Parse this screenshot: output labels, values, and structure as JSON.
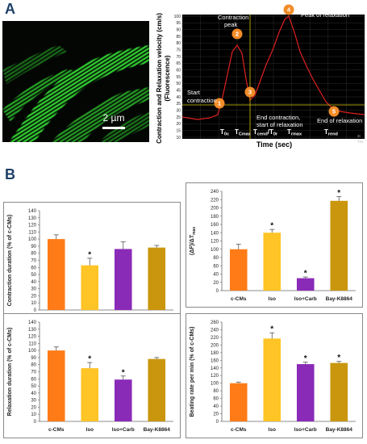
{
  "panel_labels": {
    "a": "A",
    "b": "B"
  },
  "micrograph": {
    "scale_bar_label": "2 µm"
  },
  "trace": {
    "ylabel_line1": "Contraction and Relaxation velocity (cm/s)",
    "ylabel_line2": "(Fluorescence)",
    "xlabel": "Time (sec)",
    "y_ticks": [
      "100",
      "95",
      "90",
      "85",
      "80",
      "75",
      "70",
      "65",
      "60",
      "55",
      "50",
      "45",
      "40",
      "35",
      "30",
      "25",
      "20",
      "15",
      "10"
    ],
    "x_start_label": "0.897196",
    "x_end_label": "2r",
    "x_end_label2": "Tim",
    "time_markers": {
      "t0c": "T",
      "t0c_sub": "0c",
      "tcmax": "T",
      "tcmax_sub": "Cmax",
      "tcend": "T",
      "tcend_sub": "cend",
      "slash": "/T",
      "t0r_sub": "0r",
      "trmax": "T",
      "trmax_sub": "rmax",
      "trend": "T",
      "trend_sub": "rend"
    },
    "annotations": [
      {
        "num": "1",
        "label": "Start\ncontraction"
      },
      {
        "num": "2",
        "label": "Contraction\npeak"
      },
      {
        "num": "3",
        "label": "End contraction,\nstart of relaxation"
      },
      {
        "num": "4",
        "label": "Peak of relaxation"
      },
      {
        "num": "5",
        "label": "End of relaxation"
      }
    ],
    "marker_color": "#f28c28",
    "line_color": "#e02020",
    "guide_color": "#d4c400"
  },
  "chart_data": [
    {
      "type": "bar",
      "categories": [
        "c-CMs",
        "Iso",
        "Iso+Carb",
        "Bay-K8864"
      ],
      "values": [
        100,
        63,
        86,
        88
      ],
      "errors": [
        6,
        10,
        10,
        3
      ],
      "significant": [
        false,
        true,
        false,
        false
      ],
      "ylabel": "Contraction duration (% of c-CMs)",
      "ylim": [
        0,
        140
      ],
      "yticks": [
        0,
        10,
        20,
        30,
        40,
        50,
        60,
        70,
        80,
        90,
        100,
        110,
        120,
        130,
        140
      ],
      "colors": [
        "#ff7b17",
        "#ffc425",
        "#8a2bb8",
        "#c9960e"
      ]
    },
    {
      "type": "bar",
      "categories": [
        "c-CMs",
        "Iso",
        "Iso+Carb",
        "Bay-K8864"
      ],
      "values": [
        100,
        140,
        30,
        217
      ],
      "errors": [
        12,
        8,
        3,
        10
      ],
      "significant": [
        false,
        true,
        true,
        true
      ],
      "ylabel": "(ΔF)/ΔT",
      "ylabel_sub": "max",
      "ylim": [
        0,
        240
      ],
      "yticks": [
        0,
        20,
        40,
        60,
        80,
        100,
        120,
        140,
        160,
        180,
        200,
        220,
        240
      ],
      "colors": [
        "#ff7b17",
        "#ffc425",
        "#8a2bb8",
        "#c9960e"
      ]
    },
    {
      "type": "bar",
      "categories": [
        "c-CMs",
        "Iso",
        "Iso+Carb",
        "Bay-K8864"
      ],
      "values": [
        100,
        75,
        59,
        88
      ],
      "errors": [
        5,
        8,
        5,
        2
      ],
      "significant": [
        false,
        true,
        true,
        false
      ],
      "ylabel": "Relaxation duration (% of c-CMs)",
      "ylim": [
        0,
        140
      ],
      "yticks": [
        0,
        10,
        20,
        30,
        40,
        50,
        60,
        70,
        80,
        90,
        100,
        110,
        120,
        130,
        140
      ],
      "colors": [
        "#ff7b17",
        "#ffc425",
        "#8a2bb8",
        "#c9960e"
      ]
    },
    {
      "type": "bar",
      "categories": [
        "c-CMs",
        "Iso",
        "Iso+Carb",
        "Bay-K8864"
      ],
      "values": [
        100,
        217,
        150,
        153
      ],
      "errors": [
        3,
        15,
        5,
        4
      ],
      "significant": [
        false,
        true,
        true,
        true
      ],
      "ylabel": "Beating rate per min (% of c-CMs)",
      "ylim": [
        0,
        260
      ],
      "yticks": [
        0,
        20,
        40,
        60,
        80,
        100,
        120,
        140,
        160,
        180,
        200,
        220,
        240,
        260
      ],
      "colors": [
        "#ff7b17",
        "#ffc425",
        "#8a2bb8",
        "#c9960e"
      ]
    }
  ],
  "significance_mark": "*"
}
